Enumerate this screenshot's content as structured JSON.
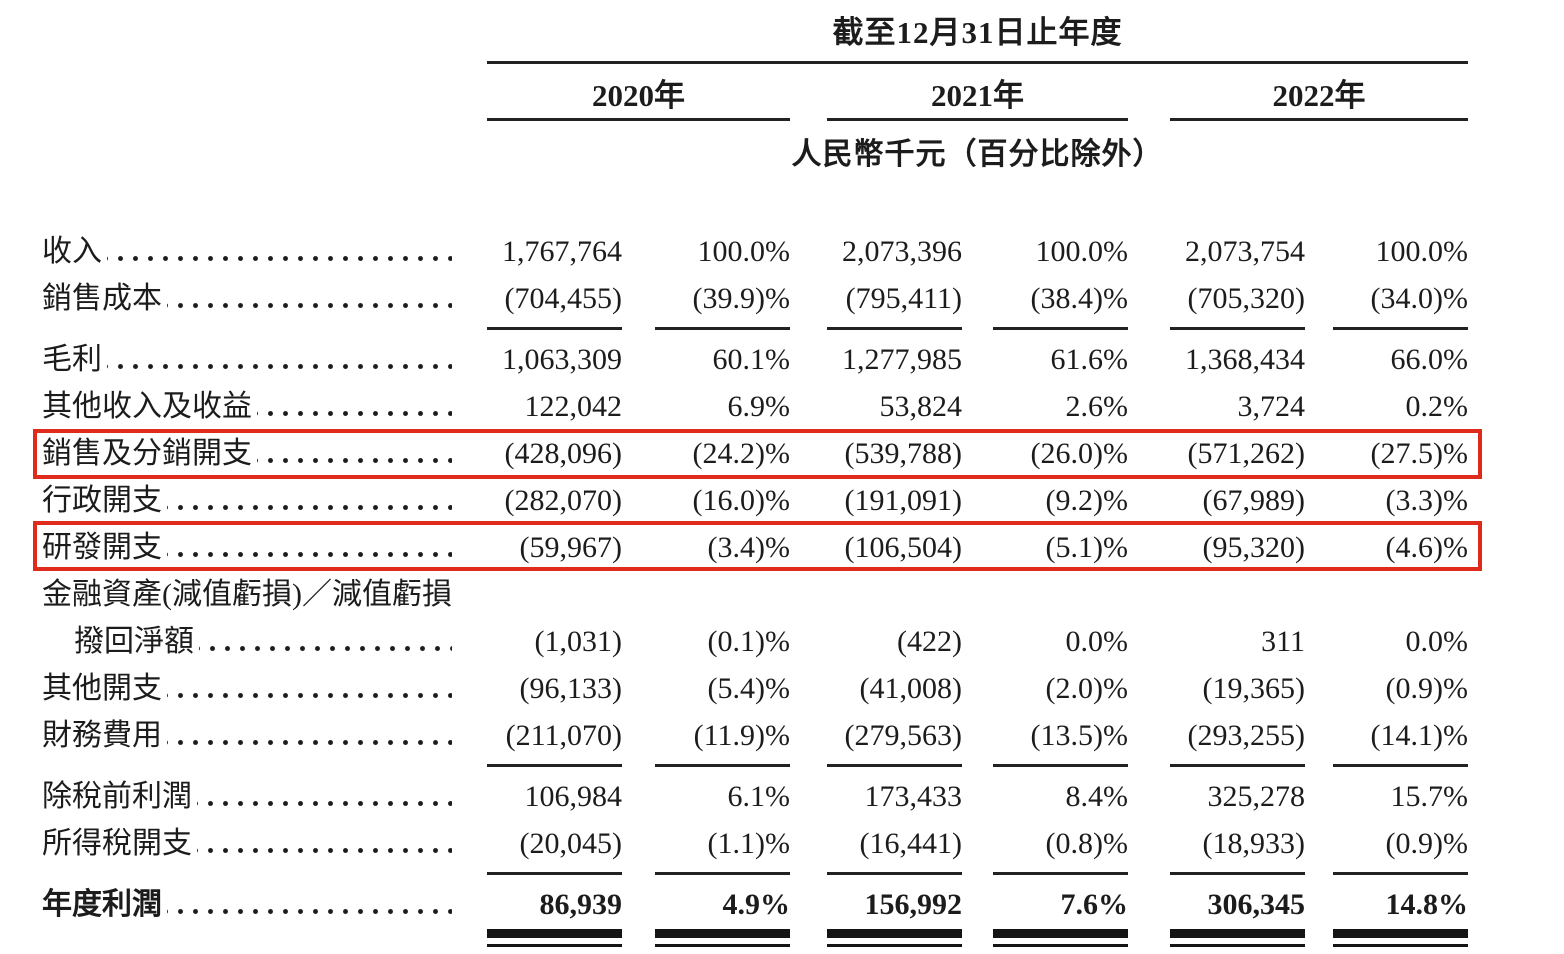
{
  "header": {
    "period_title": "截至12月31日止年度",
    "years": [
      "2020年",
      "2021年",
      "2022年"
    ],
    "unit_note": "人民幣千元（百分比除外）"
  },
  "highlight_color": "#df2b1c",
  "table": {
    "rows": [
      {
        "label": "收入",
        "values": [
          "1,767,764",
          "100.0%",
          "2,073,396",
          "100.0%",
          "2,073,754",
          "100.0%"
        ]
      },
      {
        "label": "銷售成本",
        "values": [
          "(704,455)",
          "(39.9)%",
          "(795,411)",
          "(38.4)%",
          "(705,320)",
          "(34.0)%"
        ],
        "rule_after": true
      },
      {
        "label": "毛利",
        "values": [
          "1,063,309",
          "60.1%",
          "1,277,985",
          "61.6%",
          "1,368,434",
          "66.0%"
        ]
      },
      {
        "label": "其他收入及收益",
        "values": [
          "122,042",
          "6.9%",
          "53,824",
          "2.6%",
          "3,724",
          "0.2%"
        ]
      },
      {
        "label": "銷售及分銷開支",
        "values": [
          "(428,096)",
          "(24.2)%",
          "(539,788)",
          "(26.0)%",
          "(571,262)",
          "(27.5)%"
        ],
        "highlight": true
      },
      {
        "label": "行政開支",
        "values": [
          "(282,070)",
          "(16.0)%",
          "(191,091)",
          "(9.2)%",
          "(67,989)",
          "(3.3)%"
        ]
      },
      {
        "label": "研發開支",
        "values": [
          "(59,967)",
          "(3.4)%",
          "(106,504)",
          "(5.1)%",
          "(95,320)",
          "(4.6)%"
        ],
        "highlight": true
      },
      {
        "label": "金融資產(減值虧損)／減值虧損",
        "values": [
          "",
          "",
          "",
          "",
          "",
          ""
        ],
        "no_leader": true
      },
      {
        "label": "撥回淨額",
        "indent": true,
        "values": [
          "(1,031)",
          "(0.1)%",
          "(422)",
          "0.0%",
          "311",
          "0.0%"
        ]
      },
      {
        "label": "其他開支",
        "values": [
          "(96,133)",
          "(5.4)%",
          "(41,008)",
          "(2.0)%",
          "(19,365)",
          "(0.9)%"
        ]
      },
      {
        "label": "財務費用",
        "values": [
          "(211,070)",
          "(11.9)%",
          "(279,563)",
          "(13.5)%",
          "(293,255)",
          "(14.1)%"
        ],
        "rule_after": true
      },
      {
        "label": "除稅前利潤",
        "values": [
          "106,984",
          "6.1%",
          "173,433",
          "8.4%",
          "325,278",
          "15.7%"
        ]
      },
      {
        "label": "所得稅開支",
        "values": [
          "(20,045)",
          "(1.1)%",
          "(16,441)",
          "(0.8)%",
          "(18,933)",
          "(0.9)%"
        ],
        "rule_after": true
      },
      {
        "label": "年度利潤",
        "bold": true,
        "values": [
          "86,939",
          "4.9%",
          "156,992",
          "7.6%",
          "306,345",
          "14.8%"
        ],
        "double_rule_after": true
      }
    ]
  }
}
